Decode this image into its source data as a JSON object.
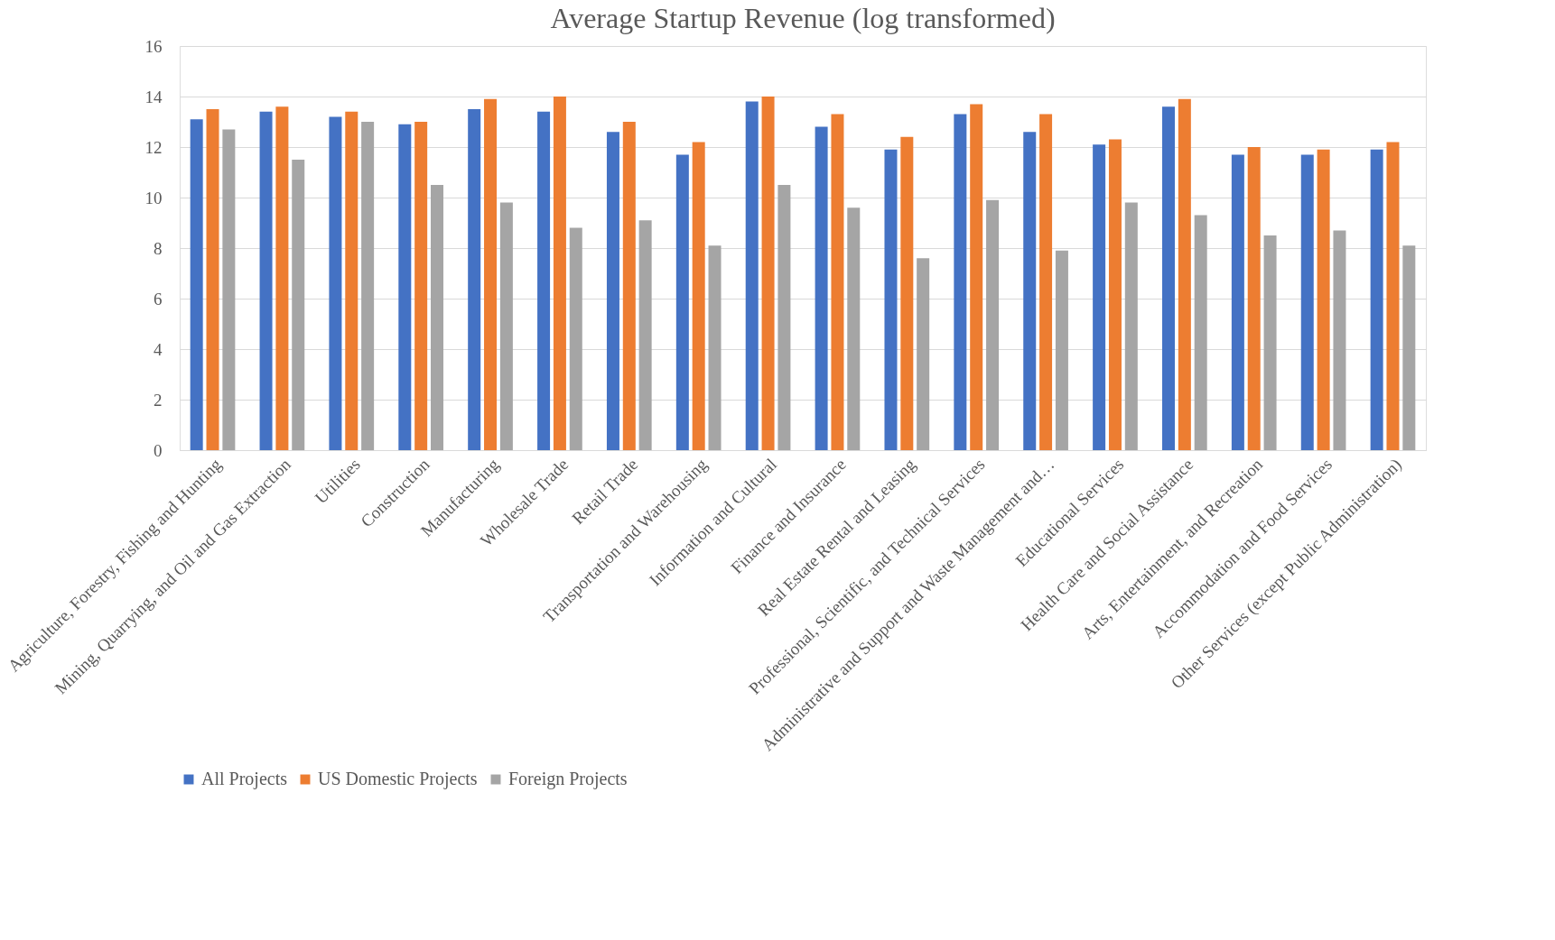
{
  "chart_data": {
    "type": "bar",
    "title": "Average Startup Revenue (log transformed)",
    "categories": [
      "Agriculture, Forestry, Fishing and Hunting",
      "Mining, Quarrying, and Oil and Gas Extraction",
      "Utilities",
      "Construction",
      "Manufacturing",
      "Wholesale Trade",
      "Retail Trade",
      "Transportation and Warehousing",
      "Information and Cultural",
      "Finance and Insurance",
      "Real Estate Rental and Leasing",
      "Professional, Scientific, and Technical Services",
      "Administrative and Support and Waste Management and…",
      "Educational Services",
      "Health Care and Social Assistance",
      "Arts, Entertainment, and Recreation",
      "Accommodation and Food Services",
      "Other Services (except Public Administration)"
    ],
    "series": [
      {
        "name": "All Projects",
        "color": "#4472c4",
        "values": [
          13.1,
          13.4,
          13.2,
          12.9,
          13.5,
          13.4,
          12.6,
          11.7,
          13.8,
          12.8,
          11.9,
          13.3,
          12.6,
          12.1,
          13.6,
          11.7,
          11.7,
          11.9
        ]
      },
      {
        "name": "US Domestic Projects",
        "color": "#ed7d31",
        "values": [
          13.5,
          13.6,
          13.4,
          13.0,
          13.9,
          14.0,
          13.0,
          12.2,
          14.0,
          13.3,
          12.4,
          13.7,
          13.3,
          12.3,
          13.9,
          12.0,
          11.9,
          12.2
        ]
      },
      {
        "name": "Foreign Projects",
        "color": "#a5a5a5",
        "values": [
          12.7,
          11.5,
          13.0,
          10.5,
          9.8,
          8.8,
          9.1,
          8.1,
          10.5,
          9.6,
          7.6,
          9.9,
          7.9,
          9.8,
          9.3,
          8.5,
          8.7,
          8.1
        ]
      }
    ],
    "ylim": [
      0,
      16
    ],
    "yticks": [
      0,
      2,
      4,
      6,
      8,
      10,
      12,
      14,
      16
    ],
    "grid": "y",
    "legend": "bottom"
  }
}
